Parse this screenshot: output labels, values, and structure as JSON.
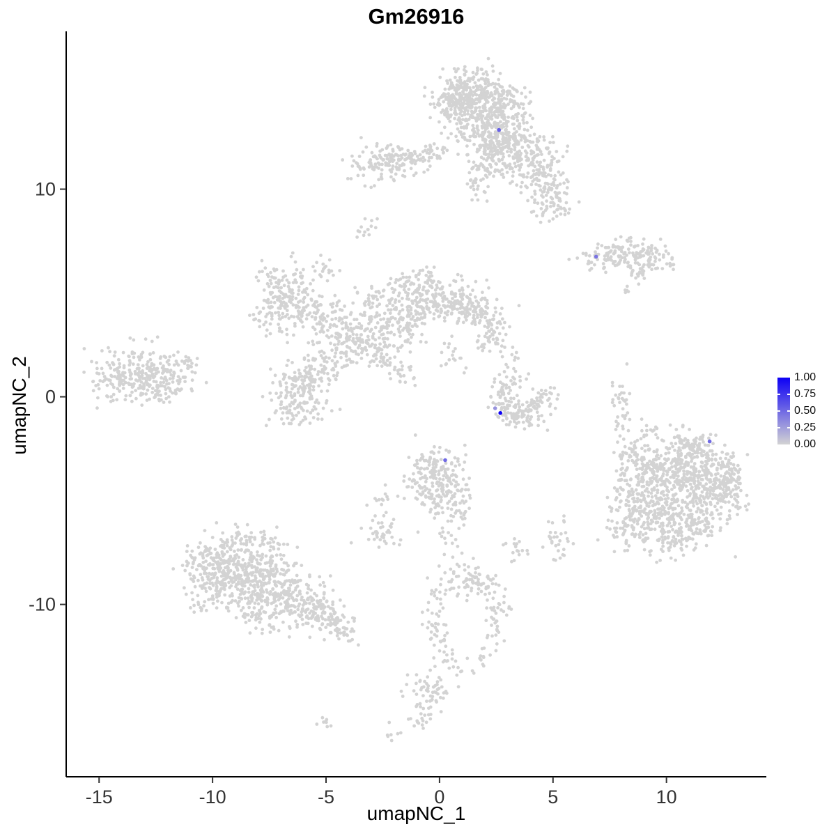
{
  "chart_data": {
    "type": "scatter",
    "title": "Gm26916",
    "xlabel": "umapNC_1",
    "ylabel": "umapNC_2",
    "xlim": [
      -16.45,
      14.4
    ],
    "ylim": [
      -18.3,
      17.6
    ],
    "grid": false,
    "x_ticks": [
      {
        "v": -15,
        "label": "-15"
      },
      {
        "v": -10,
        "label": "-10"
      },
      {
        "v": -5,
        "label": "-5"
      },
      {
        "v": 0,
        "label": "0"
      },
      {
        "v": 5,
        "label": "5"
      },
      {
        "v": 10,
        "label": "10"
      }
    ],
    "y_ticks": [
      {
        "v": 10,
        "label": "10"
      },
      {
        "v": 0,
        "label": "0"
      },
      {
        "v": -10,
        "label": "-10"
      }
    ],
    "legend": {
      "position": "right",
      "ticks": [
        "1.00",
        "0.75",
        "0.50",
        "0.25",
        "0.00"
      ]
    },
    "point_color_low": "#D3D3D3",
    "point_color_high": "#0D00F5",
    "point_radius": 2.4,
    "seed": 42,
    "background_clusters": [
      [
        1.3,
        14.7,
        0.75,
        0.55,
        240
      ],
      [
        2.0,
        13.5,
        0.9,
        0.7,
        220
      ],
      [
        0.6,
        13.9,
        0.5,
        0.5,
        70
      ],
      [
        2.9,
        14.3,
        0.5,
        0.4,
        60
      ],
      [
        2.9,
        12.3,
        0.8,
        0.55,
        140
      ],
      [
        3.8,
        11.3,
        0.7,
        0.5,
        95
      ],
      [
        4.7,
        11.8,
        0.4,
        0.4,
        22
      ],
      [
        4.6,
        10.3,
        0.5,
        0.5,
        70
      ],
      [
        5.1,
        9.3,
        0.45,
        0.5,
        55
      ],
      [
        2.3,
        11.9,
        0.5,
        0.8,
        85
      ],
      [
        1.7,
        10.6,
        0.35,
        0.7,
        45
      ],
      [
        -2.6,
        11.2,
        0.75,
        0.45,
        105
      ],
      [
        -1.4,
        11.5,
        0.5,
        0.4,
        55
      ],
      [
        -0.3,
        11.7,
        0.45,
        0.3,
        28
      ],
      [
        -3.2,
        8.0,
        0.25,
        0.3,
        14
      ],
      [
        -4.9,
        6.1,
        0.4,
        0.3,
        18
      ],
      [
        7.2,
        6.7,
        0.6,
        0.3,
        55
      ],
      [
        8.3,
        7.0,
        0.6,
        0.35,
        70
      ],
      [
        9.4,
        6.7,
        0.5,
        0.35,
        50
      ],
      [
        8.8,
        6.0,
        0.4,
        0.25,
        22
      ],
      [
        8.1,
        5.1,
        0.15,
        0.15,
        5
      ],
      [
        -6.9,
        5.4,
        0.6,
        0.55,
        85
      ],
      [
        -6.0,
        4.4,
        0.6,
        0.5,
        80
      ],
      [
        -7.3,
        4.1,
        0.5,
        0.5,
        60
      ],
      [
        -4.7,
        3.5,
        0.6,
        0.55,
        80
      ],
      [
        -3.5,
        2.7,
        0.6,
        0.55,
        85
      ],
      [
        -2.3,
        3.3,
        0.6,
        0.5,
        80
      ],
      [
        -1.3,
        4.0,
        0.55,
        0.5,
        80
      ],
      [
        -0.3,
        4.5,
        0.55,
        0.5,
        85
      ],
      [
        0.8,
        4.6,
        0.55,
        0.5,
        85
      ],
      [
        1.8,
        4.1,
        0.5,
        0.5,
        70
      ],
      [
        2.3,
        3.2,
        0.4,
        0.5,
        50
      ],
      [
        -1.6,
        5.4,
        0.4,
        0.35,
        38
      ],
      [
        -0.6,
        5.7,
        0.35,
        0.3,
        28
      ],
      [
        -2.8,
        4.7,
        0.4,
        0.35,
        38
      ],
      [
        -4.3,
        2.0,
        0.5,
        0.4,
        42
      ],
      [
        -5.3,
        1.3,
        0.5,
        0.5,
        55
      ],
      [
        -6.3,
        0.7,
        0.5,
        0.55,
        70
      ],
      [
        -5.7,
        -0.2,
        0.5,
        0.5,
        60
      ],
      [
        -6.7,
        -0.5,
        0.45,
        0.45,
        45
      ],
      [
        -2.4,
        1.9,
        0.45,
        0.3,
        30
      ],
      [
        -1.7,
        1.2,
        0.4,
        0.3,
        24
      ],
      [
        0.5,
        1.9,
        0.3,
        0.45,
        18
      ],
      [
        -13.3,
        1.2,
        0.95,
        0.65,
        170
      ],
      [
        -12.3,
        0.6,
        0.7,
        0.5,
        85
      ],
      [
        -14.2,
        0.7,
        0.5,
        0.45,
        55
      ],
      [
        -11.3,
        1.5,
        0.45,
        0.4,
        28
      ],
      [
        2.75,
        0.2,
        0.3,
        0.45,
        30
      ],
      [
        3.0,
        -0.6,
        0.35,
        0.35,
        40
      ],
      [
        3.6,
        -1.0,
        0.45,
        0.3,
        45
      ],
      [
        4.3,
        -0.7,
        0.35,
        0.35,
        35
      ],
      [
        4.65,
        -0.1,
        0.3,
        0.4,
        26
      ],
      [
        3.3,
        0.9,
        0.3,
        0.35,
        16
      ],
      [
        3.0,
        1.8,
        0.25,
        0.3,
        10
      ],
      [
        7.95,
        -0.2,
        0.22,
        0.75,
        36
      ],
      [
        -0.3,
        -3.2,
        0.55,
        0.5,
        80
      ],
      [
        0.4,
        -4.0,
        0.5,
        0.5,
        60
      ],
      [
        -0.7,
        -4.3,
        0.45,
        0.5,
        52
      ],
      [
        0.1,
        -5.0,
        0.4,
        0.4,
        40
      ],
      [
        1.0,
        -5.5,
        0.35,
        0.35,
        24
      ],
      [
        -2.5,
        -6.6,
        0.45,
        0.4,
        40
      ],
      [
        -2.3,
        -4.8,
        0.3,
        0.3,
        14
      ],
      [
        0.3,
        -6.8,
        0.3,
        0.4,
        14
      ],
      [
        10.4,
        -4.5,
        1.1,
        1.1,
        360
      ],
      [
        11.6,
        -3.3,
        0.8,
        0.7,
        170
      ],
      [
        9.3,
        -3.4,
        0.6,
        0.6,
        100
      ],
      [
        9.0,
        -5.6,
        0.6,
        0.6,
        90
      ],
      [
        10.0,
        -6.6,
        0.7,
        0.5,
        90
      ],
      [
        12.3,
        -4.7,
        0.6,
        0.7,
        110
      ],
      [
        11.2,
        -6.3,
        0.6,
        0.5,
        80
      ],
      [
        12.9,
        -3.9,
        0.35,
        0.45,
        40
      ],
      [
        8.2,
        -4.4,
        0.4,
        0.55,
        42
      ],
      [
        8.0,
        -6.4,
        0.4,
        0.5,
        38
      ],
      [
        8.3,
        -2.6,
        0.3,
        0.4,
        24
      ],
      [
        11.0,
        -2.3,
        0.55,
        0.3,
        52
      ],
      [
        9.4,
        -1.7,
        0.3,
        0.25,
        14
      ],
      [
        -8.6,
        -8.3,
        0.9,
        0.8,
        190
      ],
      [
        -9.5,
        -9.3,
        0.7,
        0.7,
        130
      ],
      [
        -7.4,
        -9.0,
        0.8,
        0.7,
        150
      ],
      [
        -6.3,
        -9.8,
        0.7,
        0.6,
        110
      ],
      [
        -5.3,
        -10.4,
        0.6,
        0.5,
        80
      ],
      [
        -9.9,
        -7.6,
        0.6,
        0.5,
        70
      ],
      [
        -8.0,
        -10.3,
        0.5,
        0.5,
        60
      ],
      [
        -4.6,
        -11.0,
        0.45,
        0.4,
        40
      ],
      [
        -8.8,
        -6.7,
        0.45,
        0.4,
        28
      ],
      [
        -7.6,
        -7.2,
        0.4,
        0.4,
        28
      ],
      [
        -10.4,
        -8.5,
        0.45,
        0.5,
        45
      ],
      [
        -4.0,
        -11.5,
        0.3,
        0.3,
        16
      ],
      [
        1.0,
        -8.7,
        0.5,
        0.45,
        48
      ],
      [
        2.0,
        -8.9,
        0.4,
        0.4,
        36
      ],
      [
        0.0,
        -9.7,
        0.25,
        0.5,
        18
      ],
      [
        -0.3,
        -10.9,
        0.25,
        0.5,
        18
      ],
      [
        0.2,
        -12.0,
        0.3,
        0.45,
        22
      ],
      [
        0.7,
        -12.9,
        0.3,
        0.3,
        14
      ],
      [
        -0.6,
        -14.2,
        0.45,
        0.55,
        55
      ],
      [
        -0.9,
        -15.4,
        0.3,
        0.3,
        18
      ],
      [
        -2.1,
        -16.3,
        0.2,
        0.2,
        6
      ],
      [
        -5.3,
        -15.8,
        0.3,
        0.2,
        8
      ],
      [
        2.6,
        -10.3,
        0.3,
        0.45,
        24
      ],
      [
        2.3,
        -11.6,
        0.25,
        0.4,
        14
      ],
      [
        1.9,
        -12.7,
        0.2,
        0.3,
        9
      ],
      [
        3.3,
        -7.4,
        0.3,
        0.3,
        18
      ],
      [
        5.2,
        -6.9,
        0.3,
        0.5,
        30
      ]
    ],
    "expressing_cells": [
      {
        "x": 2.62,
        "y": 12.85,
        "value": 0.55
      },
      {
        "x": 6.9,
        "y": 6.75,
        "value": 0.45
      },
      {
        "x": 2.45,
        "y": -0.55,
        "value": 0.3
      },
      {
        "x": 2.68,
        "y": -0.78,
        "value": 1.0
      },
      {
        "x": 0.25,
        "y": -3.05,
        "value": 0.5
      },
      {
        "x": 11.9,
        "y": -2.15,
        "value": 0.5
      }
    ]
  }
}
